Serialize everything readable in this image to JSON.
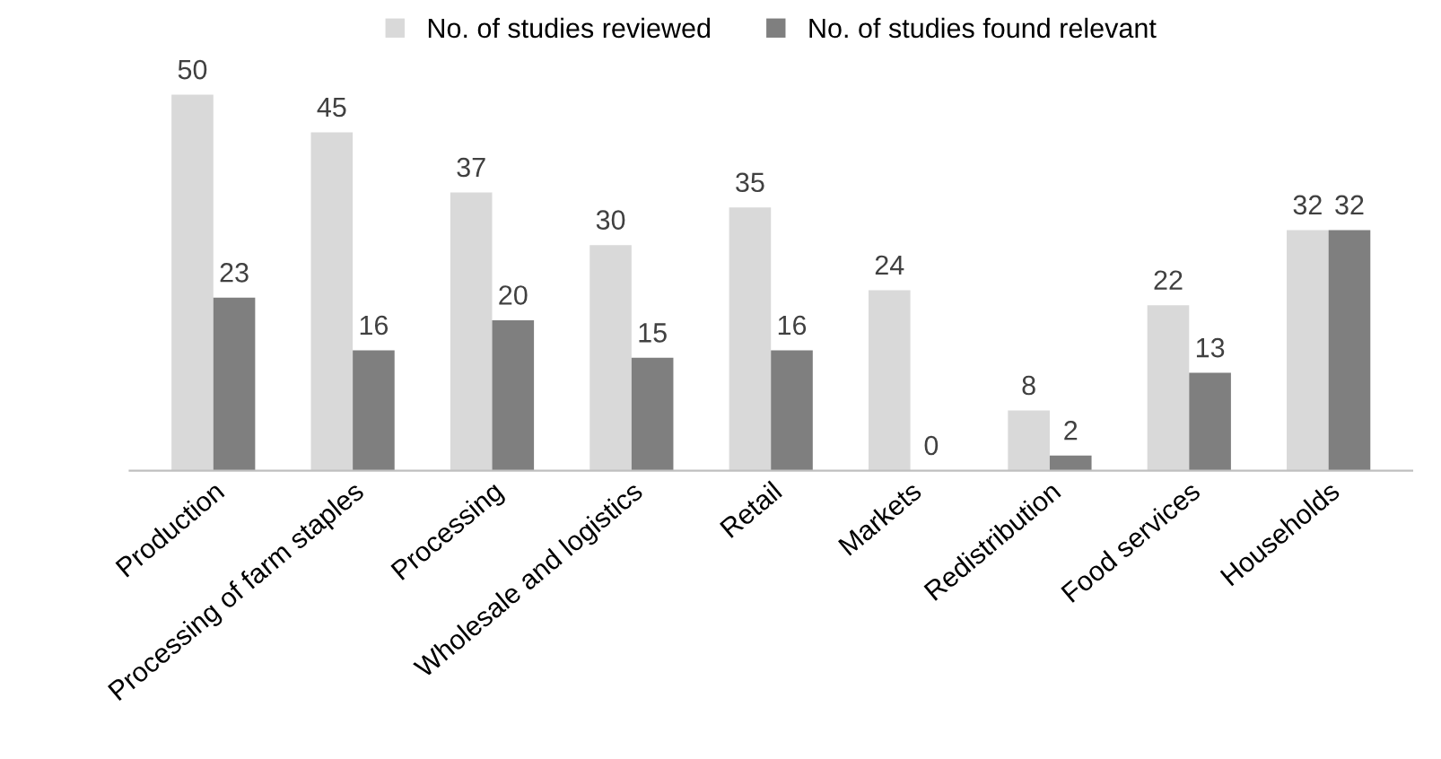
{
  "chart_data": {
    "type": "bar",
    "categories": [
      "Production",
      "Processing of farm staples",
      "Processing",
      "Wholesale and logistics",
      "Retail",
      "Markets",
      "Redistribution",
      "Food services",
      "Households"
    ],
    "series": [
      {
        "name": "No. of studies reviewed",
        "color": "#d9d9d9",
        "values": [
          50,
          45,
          37,
          30,
          35,
          24,
          8,
          22,
          32
        ]
      },
      {
        "name": "No. of studies found relevant",
        "color": "#7f7f7f",
        "values": [
          23,
          16,
          20,
          15,
          16,
          0,
          2,
          13,
          32
        ]
      }
    ],
    "data_labels": true,
    "legend": "top",
    "grid": false,
    "tick_labels": "x"
  }
}
